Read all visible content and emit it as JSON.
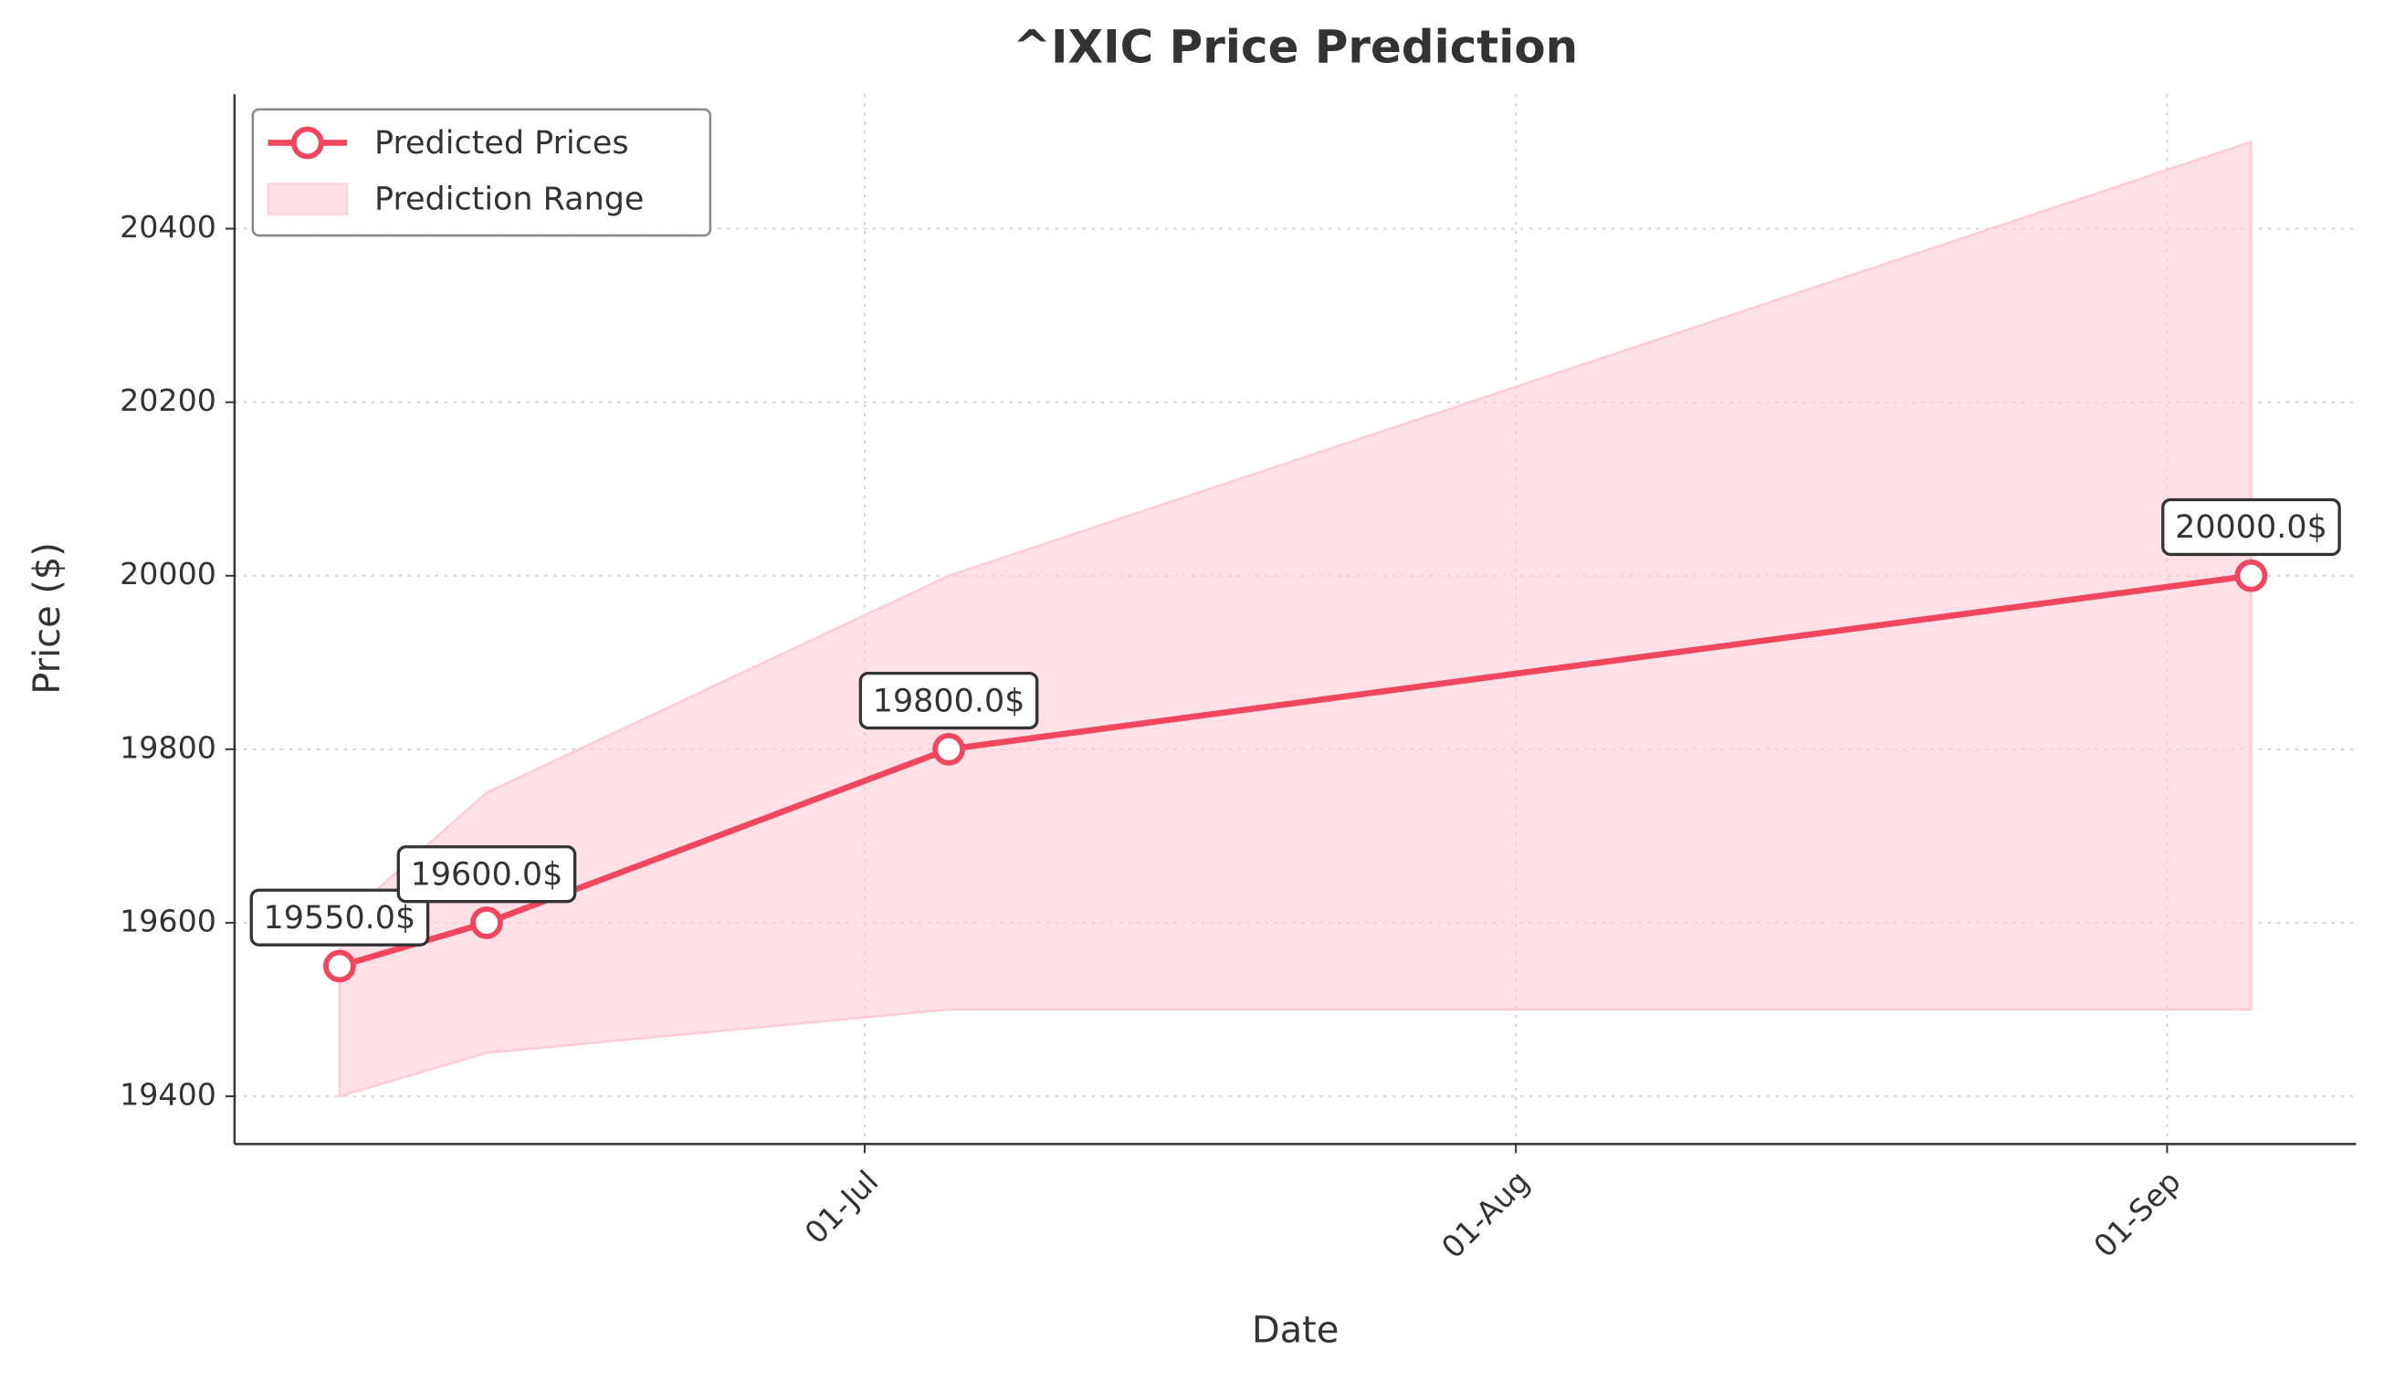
{
  "chart_data": {
    "type": "line",
    "title": "^IXIC Price Prediction",
    "x_label": "Date",
    "y_label": "Price ($)",
    "x": [
      "06-06",
      "06-13",
      "07-05",
      "09-05"
    ],
    "series": [
      {
        "name": "Predicted Prices",
        "color": "#f0475f",
        "values": [
          19550,
          19600,
          19800,
          20000
        ],
        "value_labels": [
          "19550.0$",
          "19600.0$",
          "19800.0$",
          "20000.0$"
        ]
      }
    ],
    "band": {
      "name": "Prediction Range",
      "color": "#ffccd5",
      "lower": [
        19400,
        19450,
        19500,
        19500
      ],
      "upper": [
        19600,
        19750,
        20000,
        20500
      ]
    },
    "xlim": [
      "06-01",
      "09-10"
    ],
    "xticks": [
      {
        "value": "07-01",
        "label": "01-Jul"
      },
      {
        "value": "08-01",
        "label": "01-Aug"
      },
      {
        "value": "09-01",
        "label": "01-Sep"
      }
    ],
    "ylim": [
      19345,
      20555
    ],
    "yticks": [
      19400,
      19600,
      19800,
      20000,
      20200,
      20400
    ],
    "grid": true,
    "legend": "upper left"
  }
}
